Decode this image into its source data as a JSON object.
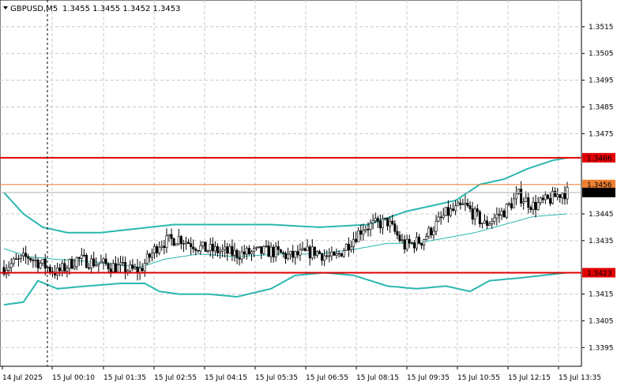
{
  "header": {
    "symbol": "GBPUSD,M5",
    "ohlc": "1.3455 1.3455 1.3452 1.3453"
  },
  "colors": {
    "background": "#ffffff",
    "grid": "#c8c8c8",
    "bollinger": "#2ab7b0",
    "candle": "#000000",
    "resistance_line": "#e00000",
    "level_line": "#f08030",
    "price_label_bg": "#000000"
  },
  "chart_data": {
    "type": "candlestick",
    "timeframe": "M5",
    "ylim": [
      1.3388,
      1.3525
    ],
    "y_ticks": [
      "1.3515",
      "1.3505",
      "1.3495",
      "1.3485",
      "1.3475",
      "1.3445",
      "1.3435",
      "1.3415",
      "1.3405",
      "1.3395"
    ],
    "x_ticks": [
      "14 Jul 2025",
      "15 Jul 00:10",
      "15 Jul 01:35",
      "15 Jul 02:55",
      "15 Jul 04:15",
      "15 Jul 05:35",
      "15 Jul 06:55",
      "15 Jul 08:15",
      "15 Jul 09:35",
      "15 Jul 10:55",
      "15 Jul 12:15",
      "15 Jul 13:35"
    ],
    "horizontal_lines": [
      {
        "label": "1.3466",
        "value": 1.3466,
        "color": "#e00000"
      },
      {
        "label": "1.3456",
        "value": 1.3456,
        "color": "#f08030"
      },
      {
        "label": "1.3423",
        "value": 1.3423,
        "color": "#e00000"
      }
    ],
    "current_price": {
      "label": "1.3453",
      "value": 1.3453
    },
    "vertical_marker_at": "15 Jul 00:00",
    "close_anchors": [
      [
        0,
        1.3425
      ],
      [
        10,
        1.3429
      ],
      [
        22,
        1.3423
      ],
      [
        30,
        1.3428
      ],
      [
        42,
        1.3426
      ],
      [
        52,
        1.3424
      ],
      [
        56,
        1.3424
      ],
      [
        64,
        1.3434
      ],
      [
        72,
        1.3436
      ],
      [
        82,
        1.3432
      ],
      [
        96,
        1.343
      ],
      [
        110,
        1.3431
      ],
      [
        118,
        1.3429
      ],
      [
        128,
        1.3431
      ],
      [
        136,
        1.3428
      ],
      [
        142,
        1.3434
      ],
      [
        148,
        1.344
      ],
      [
        158,
        1.3442
      ],
      [
        165,
        1.3433
      ],
      [
        172,
        1.3435
      ],
      [
        182,
        1.3445
      ],
      [
        190,
        1.3448
      ],
      [
        198,
        1.3441
      ],
      [
        206,
        1.3446
      ],
      [
        212,
        1.3452
      ],
      [
        218,
        1.3448
      ],
      [
        224,
        1.345
      ],
      [
        230,
        1.3453
      ]
    ],
    "bands": {
      "upper": [
        [
          0,
          1.3453
        ],
        [
          8,
          1.3445
        ],
        [
          16,
          1.344
        ],
        [
          26,
          1.3438
        ],
        [
          40,
          1.3438
        ],
        [
          50,
          1.3439
        ],
        [
          60,
          1.344
        ],
        [
          70,
          1.3441
        ],
        [
          90,
          1.3441
        ],
        [
          110,
          1.3441
        ],
        [
          130,
          1.344
        ],
        [
          150,
          1.3441
        ],
        [
          166,
          1.3446
        ],
        [
          176,
          1.3448
        ],
        [
          186,
          1.345
        ],
        [
          196,
          1.3456
        ],
        [
          206,
          1.3458
        ],
        [
          216,
          1.3462
        ],
        [
          226,
          1.3465
        ],
        [
          232,
          1.3466
        ]
      ],
      "middle": [
        [
          0,
          1.3432
        ],
        [
          10,
          1.3429
        ],
        [
          22,
          1.3428
        ],
        [
          38,
          1.3427
        ],
        [
          56,
          1.3425
        ],
        [
          66,
          1.3428
        ],
        [
          80,
          1.343
        ],
        [
          96,
          1.3429
        ],
        [
          114,
          1.343
        ],
        [
          130,
          1.343
        ],
        [
          146,
          1.3432
        ],
        [
          158,
          1.3434
        ],
        [
          170,
          1.3434
        ],
        [
          182,
          1.3436
        ],
        [
          194,
          1.3438
        ],
        [
          206,
          1.3441
        ],
        [
          218,
          1.3444
        ],
        [
          232,
          1.3445
        ]
      ],
      "lower": [
        [
          0,
          1.3411
        ],
        [
          8,
          1.3412
        ],
        [
          14,
          1.342
        ],
        [
          22,
          1.3417
        ],
        [
          34,
          1.3418
        ],
        [
          48,
          1.3419
        ],
        [
          58,
          1.3419
        ],
        [
          64,
          1.3416
        ],
        [
          72,
          1.3415
        ],
        [
          84,
          1.3415
        ],
        [
          96,
          1.3414
        ],
        [
          110,
          1.3417
        ],
        [
          120,
          1.3422
        ],
        [
          132,
          1.3423
        ],
        [
          144,
          1.3422
        ],
        [
          158,
          1.3418
        ],
        [
          170,
          1.3417
        ],
        [
          182,
          1.3418
        ],
        [
          192,
          1.3416
        ],
        [
          200,
          1.342
        ],
        [
          212,
          1.3421
        ],
        [
          222,
          1.3422
        ],
        [
          232,
          1.3423
        ]
      ]
    }
  }
}
